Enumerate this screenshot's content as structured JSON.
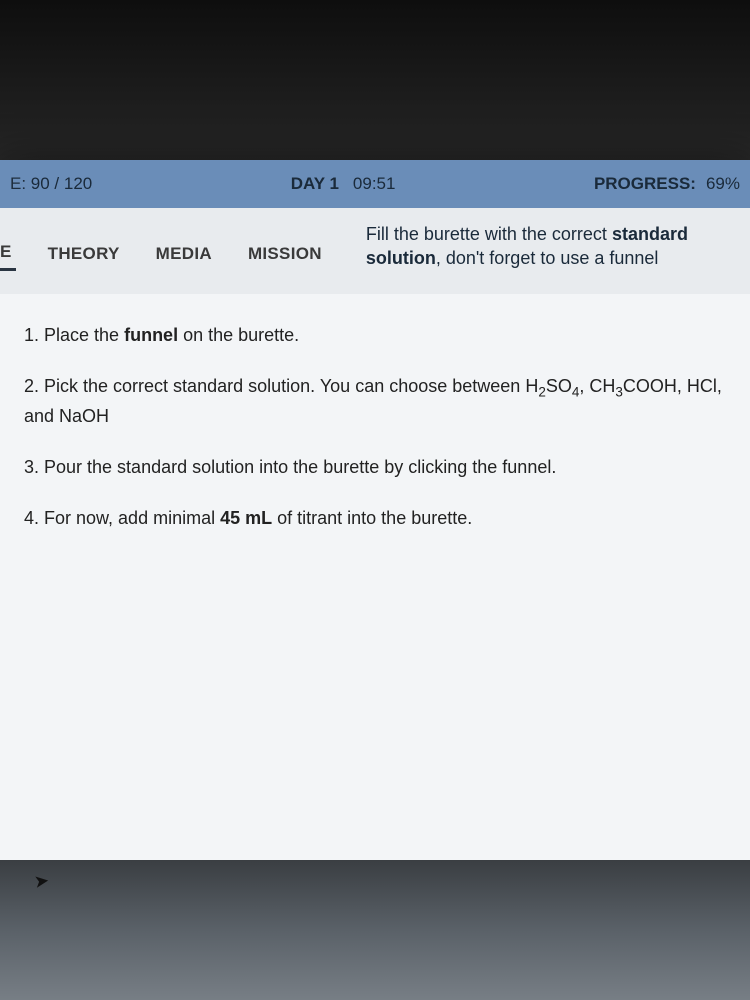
{
  "status": {
    "score_prefix": "E:",
    "score_value": "90 / 120",
    "day_label": "DAY 1",
    "time": "09:51",
    "progress_label": "PROGRESS:",
    "progress_value": "69%"
  },
  "tabs": {
    "partial_left": "E",
    "items": [
      "THEORY",
      "MEDIA",
      "MISSION"
    ]
  },
  "top_instruction": {
    "prefix": "Fill the burette with the correct ",
    "bold1": "standard solution",
    "suffix": ", don't forget to use a funnel"
  },
  "steps": {
    "s1_pre": "1. Place the ",
    "s1_bold": "funnel",
    "s1_post": " on the burette.",
    "s2_pre": "2. Pick the correct standard solution. You can choose between H",
    "s2_sub1": "2",
    "s2_mid1": "SO",
    "s2_sub2": "4",
    "s2_mid2": ", CH",
    "s2_sub3": "3",
    "s2_post": "COOH, HCl, and NaOH",
    "s3": "3. Pour the standard solution into the burette by clicking the funnel.",
    "s4_pre": "4. For now, add minimal ",
    "s4_bold": "45 mL",
    "s4_post": " of titrant into the burette."
  },
  "colors": {
    "status_bar_bg": "#6a8db8",
    "panel_bg": "#e8ebee",
    "content_bg": "#f3f5f7",
    "text_dark": "#1a2a3a"
  }
}
